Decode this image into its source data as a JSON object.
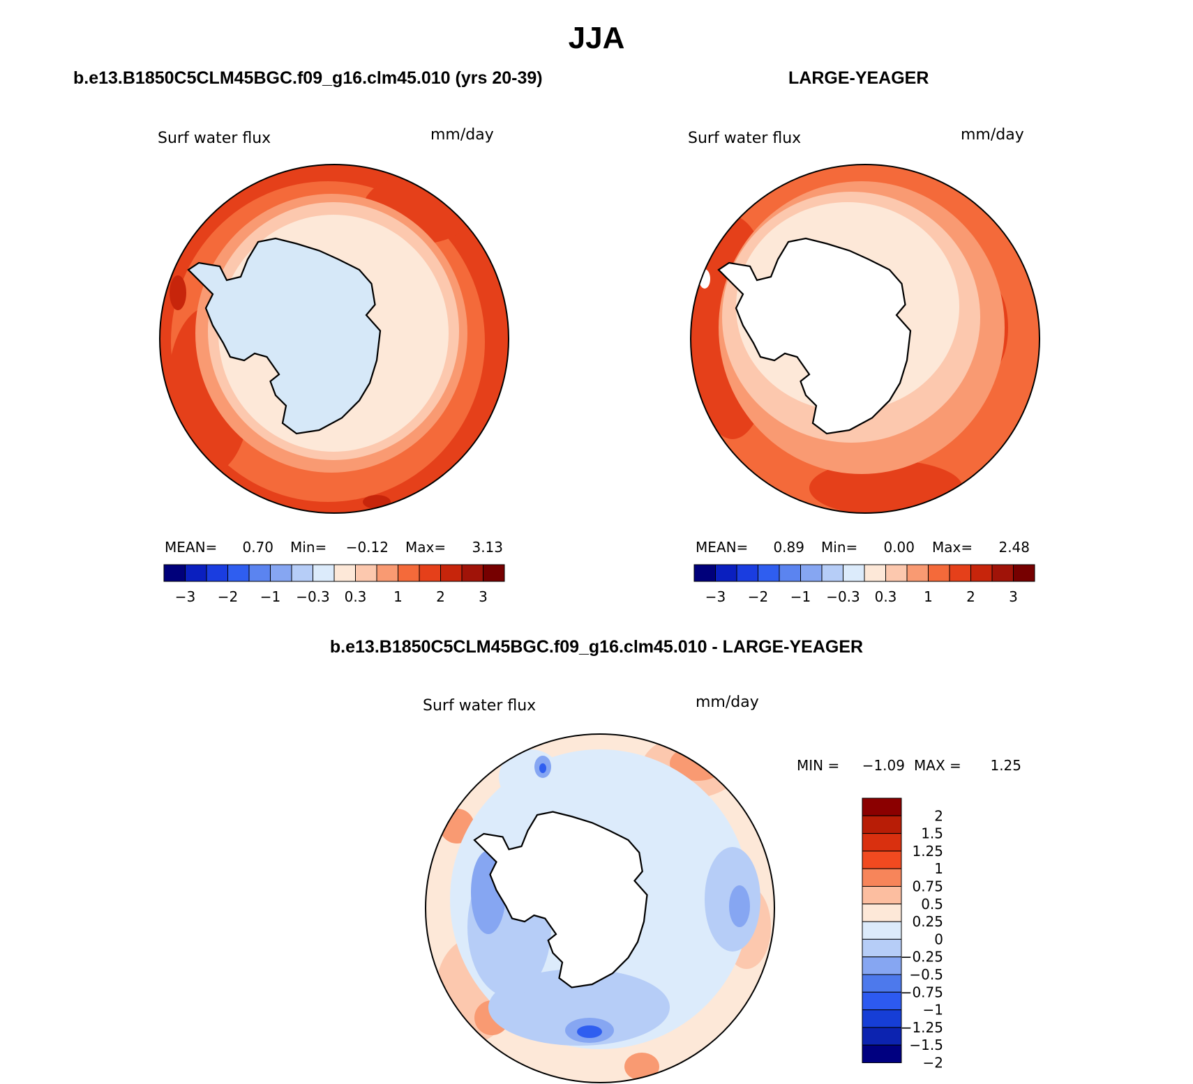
{
  "figure": {
    "title": "JJA",
    "case_label": "b.e13.B1850C5CLM45BGC.f09_g16.clm45.010 (yrs 20-39)",
    "obs_label": "LARGE-YEAGER",
    "diff_label": "b.e13.B1850C5CLM45BGC.f09_g16.clm45.010 - LARGE-YEAGER"
  },
  "panels": [
    {
      "id": "case",
      "variable": "Surf water flux",
      "units": "mm/day",
      "stats": {
        "mean_label": "MEAN=",
        "mean": "0.70",
        "min_label": "Min=",
        "min": "−0.12",
        "max_label": "Max=",
        "max": "3.13"
      },
      "land_fill": "#d6e8f8"
    },
    {
      "id": "obs",
      "variable": "Surf water flux",
      "units": "mm/day",
      "stats": {
        "mean_label": "MEAN=",
        "mean": "0.89",
        "min_label": "Min=",
        "min": "0.00",
        "max_label": "Max=",
        "max": "2.48"
      },
      "land_fill": "#ffffff"
    },
    {
      "id": "diff",
      "variable": "Surf water flux",
      "units": "mm/day",
      "stats": {
        "min_label": "MIN =",
        "min": "−1.09",
        "max_label": "MAX =",
        "max": "1.25"
      },
      "land_fill": "#ffffff"
    }
  ],
  "colorbar_main": {
    "colors": [
      "#00007a",
      "#0a1fbf",
      "#1a3de0",
      "#2f5ef0",
      "#5b84f0",
      "#86a6f2",
      "#b6cdf7",
      "#dcebfb",
      "#fde8d8",
      "#fcc8ae",
      "#f99a72",
      "#f46a3a",
      "#e5401a",
      "#c7250b",
      "#a01308",
      "#760000"
    ],
    "tick_labels": [
      "−3",
      "−2",
      "−1",
      "−0.3",
      "0.3",
      "1",
      "2",
      "3"
    ]
  },
  "colorbar_diff": {
    "colors_top_to_bottom": [
      "#8b0000",
      "#b81d06",
      "#d9300f",
      "#f14a20",
      "#f7855a",
      "#fcbea0",
      "#fde8d8",
      "#dcebfb",
      "#b6cdf7",
      "#86a6f2",
      "#4d79ec",
      "#2d5af0",
      "#163ed6",
      "#0c23b0",
      "#000080"
    ],
    "tick_labels_top_to_bottom": [
      "2",
      "1.5",
      "1.25",
      "1",
      "0.75",
      "0.5",
      "0.25",
      "0",
      "−0.25",
      "−0.5",
      "−0.75",
      "−1",
      "−1.25",
      "−1.5",
      "−2"
    ]
  },
  "color_roles": {
    "ocean_case": [
      "#e5401a",
      "#f46a3a",
      "#f99a72",
      "#fcc8ae",
      "#fde8d8"
    ],
    "ocean_obs": [
      "#e5401a",
      "#f46a3a",
      "#f99a72",
      "#fcc8ae",
      "#fde8d8"
    ],
    "ocean_diff": [
      "#f46a3a",
      "#fcc8ae",
      "#fde8d8",
      "#dcebfb",
      "#b6cdf7",
      "#86a6f2",
      "#2f5ef0"
    ]
  }
}
